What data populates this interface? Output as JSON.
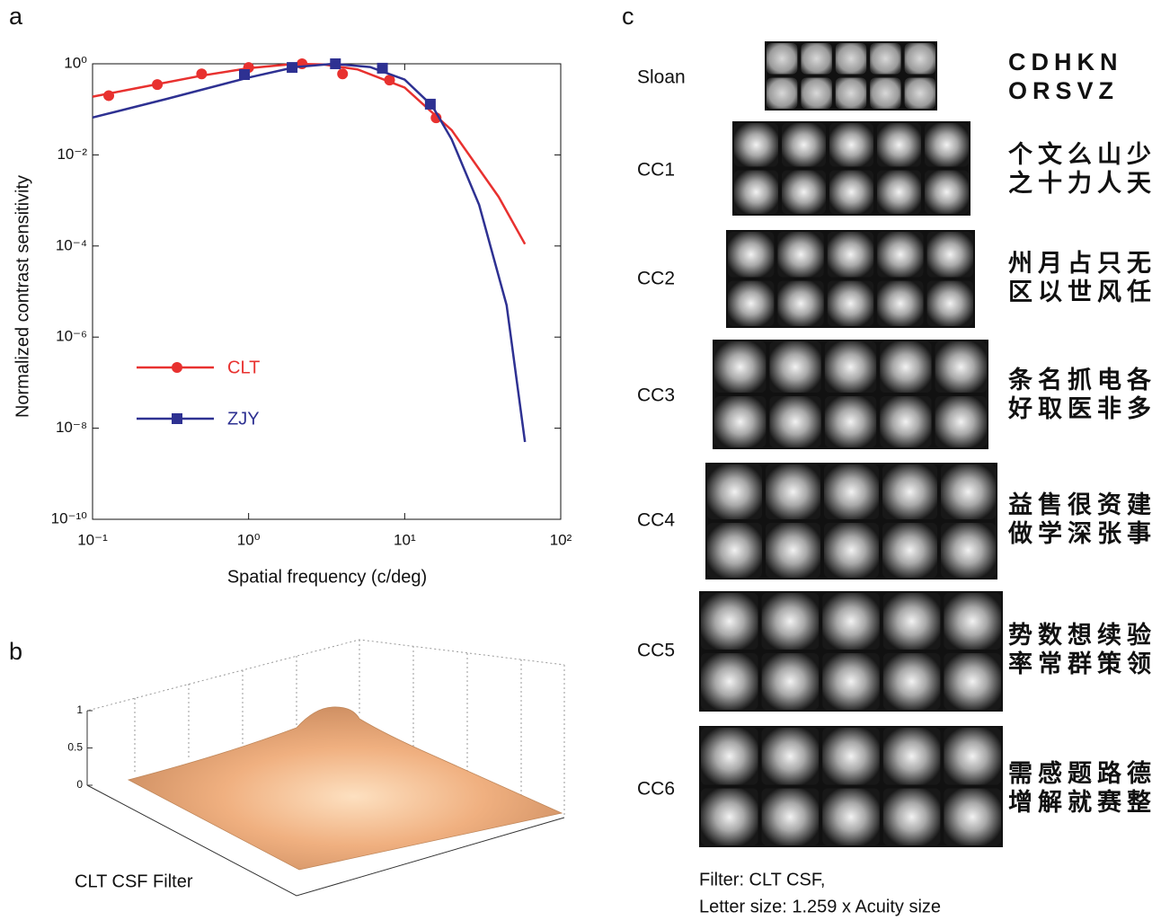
{
  "panel_labels": [
    "a",
    "b",
    "c"
  ],
  "chart_data": {
    "type": "line",
    "log_scale": true,
    "x_label": "Spatial frequency (c/deg)",
    "y_label": "Normalized contrast sensitivity",
    "xlim": [
      0.1,
      100
    ],
    "ylim": [
      1e-10,
      1
    ],
    "xticks": [
      {
        "value": 0.1,
        "label": "10⁻¹"
      },
      {
        "value": 1,
        "label": "10⁰"
      },
      {
        "value": 10,
        "label": "10¹"
      },
      {
        "value": 100,
        "label": "10²"
      }
    ],
    "yticks": [
      {
        "value": 1,
        "label": "10⁰"
      },
      {
        "value": 0.01,
        "label": "10⁻²"
      },
      {
        "value": 0.0001,
        "label": "10⁻⁴"
      },
      {
        "value": 1e-06,
        "label": "10⁻⁶"
      },
      {
        "value": 1e-08,
        "label": "10⁻⁸"
      },
      {
        "value": 1e-10,
        "label": "10⁻¹⁰"
      }
    ],
    "series": [
      {
        "name": "CLT",
        "color": "#e8312f",
        "marker": "circle",
        "x": [
          0.127,
          0.26,
          0.5,
          1.0,
          2.2,
          4.0,
          8.0,
          15.9
        ],
        "values": [
          0.2,
          0.35,
          0.6,
          0.83,
          1.0,
          0.6,
          0.44,
          0.065
        ],
        "fit_x": [
          0.1,
          0.2,
          0.5,
          1,
          2,
          3,
          5,
          10,
          20,
          40,
          59
        ],
        "fit_values": [
          0.19,
          0.3,
          0.55,
          0.8,
          1.0,
          0.97,
          0.75,
          0.3,
          0.035,
          0.0012,
          0.00011
        ]
      },
      {
        "name": "ZJY",
        "color": "#2e3192",
        "marker": "square",
        "x": [
          0.94,
          1.9,
          3.6,
          7.2,
          14.6
        ],
        "values": [
          0.58,
          0.83,
          1.0,
          0.8,
          0.13
        ],
        "fit_x": [
          0.1,
          0.3,
          1,
          2,
          3.5,
          6,
          10,
          15,
          20,
          30,
          45,
          59
        ],
        "fit_values": [
          0.066,
          0.17,
          0.5,
          0.85,
          1.0,
          0.85,
          0.45,
          0.12,
          0.022,
          0.0008,
          5e-06,
          5e-09
        ]
      }
    ]
  },
  "surface": {
    "label": "CLT CSF Filter",
    "zticks": [
      0,
      0.5,
      1
    ]
  },
  "letter_sets": [
    {
      "name": "Sloan",
      "lines": [
        "CDHKN",
        "ORSVZ"
      ]
    },
    {
      "name": "CC1",
      "lines": [
        "个文么山少",
        "之十力人天"
      ]
    },
    {
      "name": "CC2",
      "lines": [
        "州月占只无",
        "区以世风任"
      ]
    },
    {
      "name": "CC3",
      "lines": [
        "条名抓电各",
        "好取医非多"
      ]
    },
    {
      "name": "CC4",
      "lines": [
        "益售很资建",
        "做学深张事"
      ]
    },
    {
      "name": "CC5",
      "lines": [
        "势数想续验",
        "率常群策领"
      ]
    },
    {
      "name": "CC6",
      "lines": [
        "需感题路德",
        "增解就赛整"
      ]
    }
  ],
  "caption": [
    "Filter: CLT CSF,",
    "Letter size: 1.259 x Acuity size"
  ]
}
